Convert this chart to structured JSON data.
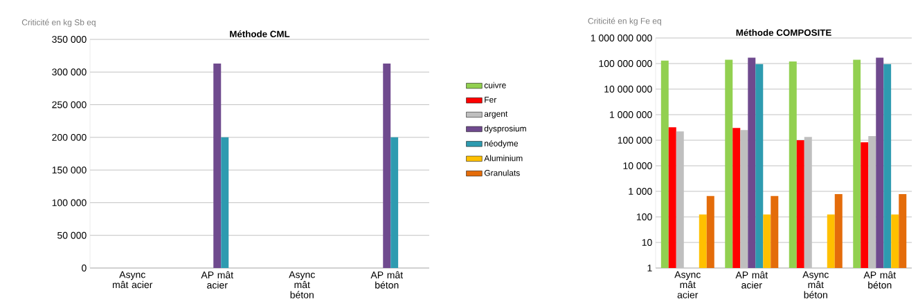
{
  "chart_data": [
    {
      "type": "bar",
      "title": "Méthode CML",
      "ylabel": "Criticité en kg Sb eq",
      "categories": [
        "Async mât acier",
        "AP mât acier",
        "Async mât béton",
        "AP mât béton"
      ],
      "series": [
        {
          "name": "cuivre",
          "color": "#92d050",
          "values": [
            0,
            0,
            0,
            0
          ]
        },
        {
          "name": "Fer",
          "color": "#ff0000",
          "values": [
            0,
            0,
            0,
            0
          ]
        },
        {
          "name": "argent",
          "color": "#bfbfbf",
          "values": [
            0,
            0,
            0,
            0
          ]
        },
        {
          "name": "dysprosium",
          "color": "#6f4a8e",
          "values": [
            0,
            313000,
            0,
            313000
          ]
        },
        {
          "name": "néodyme",
          "color": "#2e9bb0",
          "values": [
            0,
            200000,
            0,
            200000
          ]
        },
        {
          "name": "Aluminium",
          "color": "#ffc000",
          "values": [
            0,
            0,
            0,
            0
          ]
        },
        {
          "name": "Granulats",
          "color": "#e46c0a",
          "values": [
            0,
            0,
            0,
            0
          ]
        }
      ],
      "ylim": [
        0,
        350000
      ],
      "yticks": [
        {
          "value": 0,
          "label": "0"
        },
        {
          "value": 50000,
          "label": "50 000"
        },
        {
          "value": 100000,
          "label": "100 000"
        },
        {
          "value": 150000,
          "label": "150 000"
        },
        {
          "value": 200000,
          "label": "200 000"
        },
        {
          "value": 250000,
          "label": "250 000"
        },
        {
          "value": 300000,
          "label": "300 000"
        },
        {
          "value": 350000,
          "label": "350 000"
        }
      ],
      "grid": "y",
      "legend": "right"
    },
    {
      "type": "bar",
      "title": "Méthode COMPOSITE",
      "ylabel": "Criticité en kg Fe eq",
      "categories": [
        "Async mât acier",
        "AP mât acier",
        "Async mât béton",
        "AP mât béton"
      ],
      "series": [
        {
          "color": "#92d050",
          "values": [
            130000000,
            140000000,
            120000000,
            140000000
          ]
        },
        {
          "color": "#ff0000",
          "values": [
            320000,
            300000,
            100000,
            83000
          ]
        },
        {
          "color": "#bfbfbf",
          "values": [
            220000,
            250000,
            135000,
            145000
          ]
        },
        {
          "color": "#6f4a8e",
          "values": [
            null,
            170000000,
            null,
            170000000
          ]
        },
        {
          "color": "#2e9bb0",
          "values": [
            null,
            95000000,
            null,
            95000000
          ]
        },
        {
          "color": "#ffc000",
          "values": [
            125,
            125,
            125,
            125
          ]
        },
        {
          "color": "#e46c0a",
          "values": [
            660,
            660,
            780,
            780
          ]
        }
      ],
      "log": true,
      "ylim": [
        1,
        1000000000
      ],
      "yticks": [
        {
          "value": 1,
          "label": "1"
        },
        {
          "value": 10,
          "label": "10"
        },
        {
          "value": 100,
          "label": "100"
        },
        {
          "value": 1000,
          "label": "1 000"
        },
        {
          "value": 10000,
          "label": "10 000"
        },
        {
          "value": 100000,
          "label": "100 000"
        },
        {
          "value": 1000000,
          "label": "1 000 000"
        },
        {
          "value": 10000000,
          "label": "10 000 000"
        },
        {
          "value": 100000000,
          "label": "100 000 000"
        },
        {
          "value": 1000000000,
          "label": "1 000 000 000"
        }
      ],
      "grid": "y"
    }
  ]
}
